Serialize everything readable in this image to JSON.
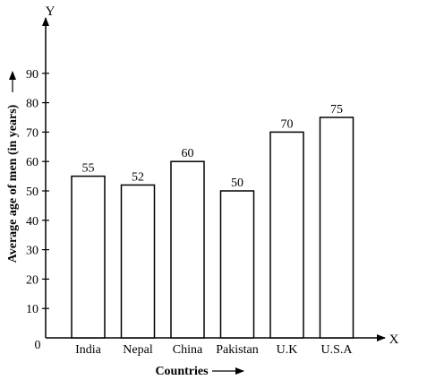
{
  "chart_data": {
    "type": "bar",
    "title": "",
    "xlabel": "Countries",
    "ylabel": "Average age of men (in years)",
    "x_axis_letter": "X",
    "y_axis_letter": "Y",
    "origin_label": "0",
    "categories": [
      "India",
      "Nepal",
      "China",
      "Pakistan",
      "U.K",
      "U.S.A"
    ],
    "values": [
      55,
      52,
      60,
      50,
      70,
      75
    ],
    "value_labels": [
      "55",
      "52",
      "60",
      "50",
      "70",
      "75"
    ],
    "yticks": [
      10,
      20,
      30,
      40,
      50,
      60,
      70,
      80,
      90
    ],
    "ytick_labels": [
      "10",
      "20",
      "30",
      "40",
      "50",
      "60",
      "70",
      "80",
      "90"
    ],
    "ylim": [
      0,
      100
    ],
    "grid": false,
    "legend": "none",
    "bar_fill": "#ffffff",
    "bar_stroke": "#000000"
  }
}
